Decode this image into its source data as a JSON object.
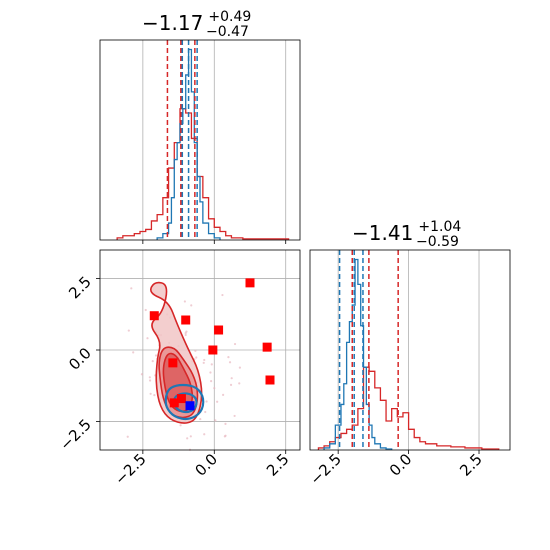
{
  "chart_data": [
    {
      "type": "histogram",
      "panel": "top-left",
      "title": {
        "main": "−1.17",
        "sup": "+0.49",
        "sub": "−0.47"
      },
      "xlim": [
        -4.0,
        3.0
      ],
      "grid": true,
      "series": [
        {
          "color": "#d62728",
          "bin_edges": [
            -3.4,
            -3.2,
            -3.0,
            -2.8,
            -2.6,
            -2.4,
            -2.2,
            -2.0,
            -1.8,
            -1.6,
            -1.4,
            -1.2,
            -1.0,
            -0.8,
            -0.6,
            -0.4,
            -0.2,
            0.0,
            0.2,
            0.4,
            0.6,
            0.8,
            1.0,
            2.6
          ],
          "counts": [
            0.01,
            0.02,
            0.02,
            0.03,
            0.04,
            0.05,
            0.09,
            0.12,
            0.2,
            0.34,
            0.46,
            0.62,
            0.6,
            0.48,
            0.3,
            0.2,
            0.1,
            0.06,
            0.04,
            0.02,
            0.01,
            0.01,
            0.005
          ],
          "quantiles": [
            -1.64,
            -1.17,
            -0.68
          ]
        },
        {
          "color": "#1f77b4",
          "bin_edges": [
            -2.0,
            -1.8,
            -1.6,
            -1.5,
            -1.4,
            -1.3,
            -1.2,
            -1.1,
            -1.0,
            -0.9,
            -0.8,
            -0.7,
            -0.6,
            -0.5,
            -0.4,
            -0.2,
            0.0,
            0.2
          ],
          "counts": [
            0.01,
            0.03,
            0.08,
            0.2,
            0.38,
            0.46,
            0.55,
            0.62,
            0.78,
            0.9,
            0.7,
            0.46,
            0.3,
            0.18,
            0.08,
            0.03,
            0.01
          ],
          "quantiles": [
            -1.12,
            -0.9,
            -0.6
          ]
        }
      ]
    },
    {
      "type": "histogram",
      "panel": "bottom-right",
      "title": {
        "main": "−1.41",
        "sup": "+1.04",
        "sub": "−0.59"
      },
      "xlim": [
        -3.5,
        3.6
      ],
      "xticks": [
        "−2.5",
        "0.0",
        "2.5"
      ],
      "grid": true,
      "series": [
        {
          "color": "#d62728",
          "bin_edges": [
            -3.2,
            -3.0,
            -2.8,
            -2.6,
            -2.4,
            -2.2,
            -2.0,
            -1.8,
            -1.6,
            -1.4,
            -1.2,
            -1.0,
            -0.8,
            -0.6,
            -0.4,
            -0.2,
            0.0,
            0.2,
            0.4,
            0.6,
            1.0,
            1.5,
            2.0,
            2.6,
            3.2
          ],
          "counts": [
            0.01,
            0.02,
            0.04,
            0.06,
            0.08,
            0.1,
            0.12,
            0.2,
            0.4,
            0.38,
            0.3,
            0.24,
            0.14,
            0.2,
            0.16,
            0.18,
            0.1,
            0.06,
            0.04,
            0.03,
            0.02,
            0.015,
            0.01,
            0.005
          ],
          "quantiles": [
            -2.0,
            -1.41,
            -0.37
          ]
        },
        {
          "color": "#1f77b4",
          "bin_edges": [
            -3.0,
            -2.8,
            -2.6,
            -2.4,
            -2.3,
            -2.2,
            -2.1,
            -2.0,
            -1.9,
            -1.8,
            -1.7,
            -1.6,
            -1.5,
            -1.4,
            -1.3,
            -1.2,
            -1.0,
            -0.8,
            -0.6
          ],
          "counts": [
            0.01,
            0.03,
            0.12,
            0.22,
            0.32,
            0.52,
            0.62,
            0.7,
            0.92,
            0.8,
            0.6,
            0.4,
            0.22,
            0.12,
            0.06,
            0.03,
            0.01,
            0.005
          ],
          "quantiles": [
            -2.45,
            -1.93,
            -1.62
          ]
        }
      ]
    },
    {
      "type": "scatter",
      "panel": "bottom-left",
      "xlim": [
        -4.0,
        3.0
      ],
      "ylim": [
        -3.5,
        3.5
      ],
      "xticks": [
        "−2.5",
        "0.0",
        "2.5"
      ],
      "yticks": [
        "2.5",
        "0.0",
        "−2.5"
      ],
      "grid": true,
      "series": [
        {
          "name": "",
          "color": "#ff0000",
          "marker": "square",
          "points": [
            [
              -2.1,
              1.2
            ],
            [
              -1.0,
              1.05
            ],
            [
              0.15,
              0.7
            ],
            [
              -0.05,
              0.0
            ],
            [
              1.25,
              2.35
            ],
            [
              1.85,
              0.1
            ],
            [
              1.95,
              -1.05
            ],
            [
              -1.45,
              -0.45
            ],
            [
              -1.15,
              -1.7
            ],
            [
              -1.4,
              -1.85
            ]
          ]
        },
        {
          "name": "",
          "color": "#0000ff",
          "marker": "square",
          "points": [
            [
              -0.85,
              -1.95
            ]
          ]
        }
      ],
      "contours": [
        {
          "color": "#d62728",
          "fill": "#f1c6c6",
          "level": "outer"
        },
        {
          "color": "#d62728",
          "fill": "#e88e8e",
          "level": "middle"
        },
        {
          "color": "#d62728",
          "fill": "#dc5c5c",
          "level": "inner"
        },
        {
          "color": "#1f77b4",
          "fill": "none",
          "level": "outer"
        },
        {
          "color": "#1f77b4",
          "fill": "none",
          "level": "inner"
        }
      ]
    }
  ],
  "colors": {
    "red": "#d62728",
    "blue": "#1f77b4",
    "marker_red": "#ff0000",
    "marker_blue": "#0000ff"
  }
}
